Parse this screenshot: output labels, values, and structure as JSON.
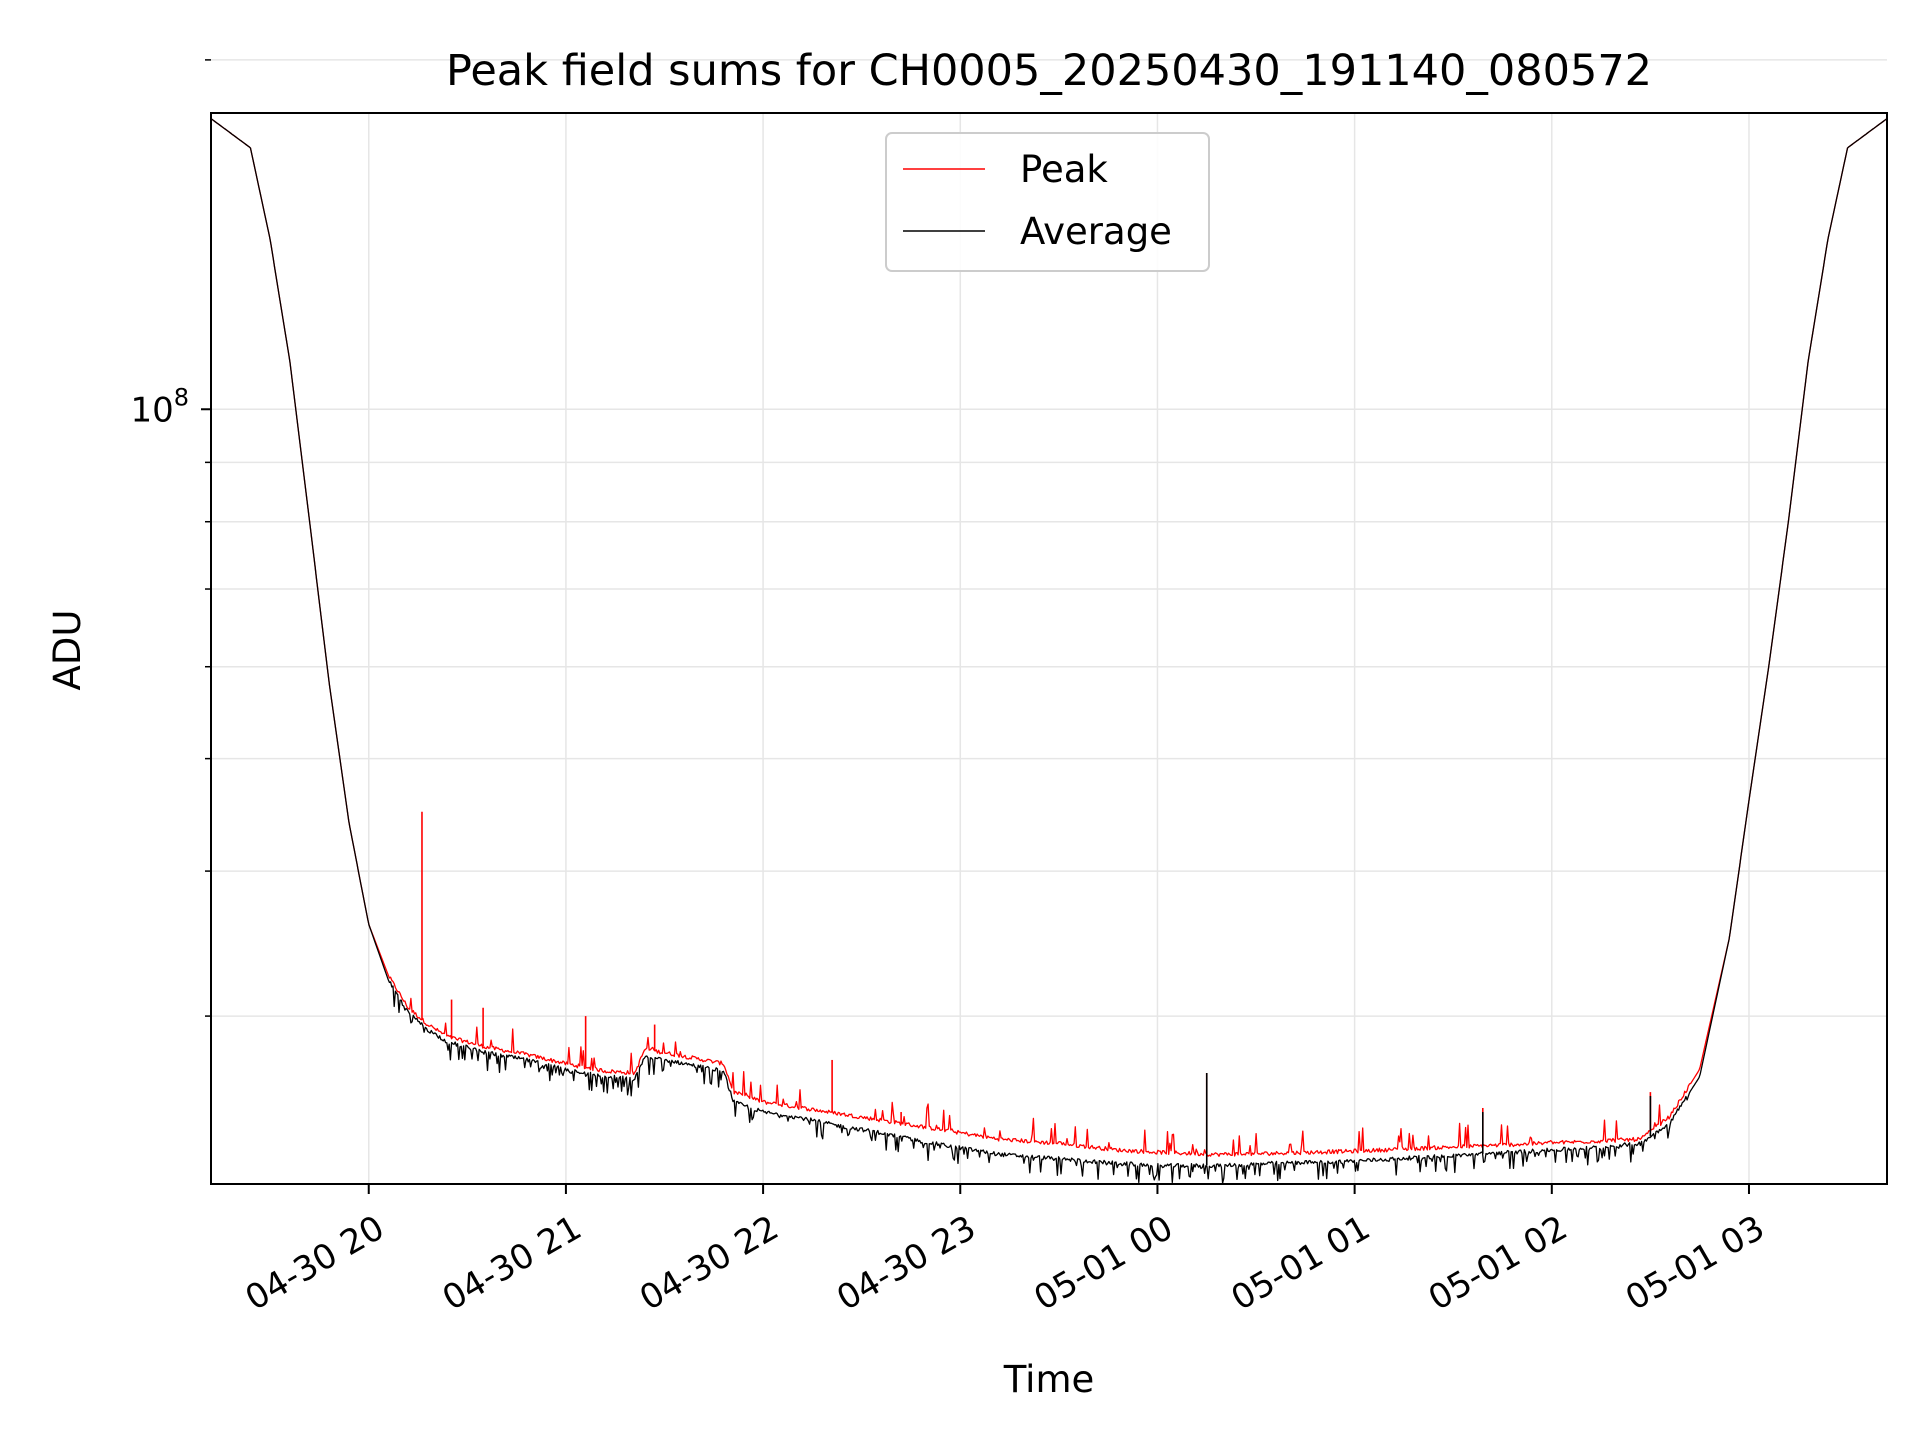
{
  "chart_data": {
    "type": "line",
    "title": "Peak field sums for CH0005_20250430_191140_080572",
    "xlabel": "Time",
    "ylabel": "ADU",
    "yscale": "log",
    "ylim": [
      21500000,
      180000000
    ],
    "xlim_hours": [
      19.2,
      27.7
    ],
    "grid": true,
    "legend_position": "top-center",
    "x_ticks": [
      {
        "hour": 20,
        "label": "04-30 20"
      },
      {
        "hour": 21,
        "label": "04-30 21"
      },
      {
        "hour": 22,
        "label": "04-30 22"
      },
      {
        "hour": 23,
        "label": "04-30 23"
      },
      {
        "hour": 24,
        "label": "05-01 00"
      },
      {
        "hour": 25,
        "label": "05-01 01"
      },
      {
        "hour": 26,
        "label": "05-01 02"
      },
      {
        "hour": 27,
        "label": "05-01 03"
      }
    ],
    "y_major_ticks": [
      {
        "value": 100000000,
        "base": "10",
        "exp": "8"
      }
    ],
    "y_minor_ticks": [
      30000000,
      40000000,
      50000000,
      60000000,
      70000000,
      80000000,
      90000000,
      200000000
    ],
    "series": [
      {
        "name": "Peak",
        "color": "#ff0000",
        "points": [
          [
            19.2,
            178000000
          ],
          [
            19.4,
            168000000
          ],
          [
            19.5,
            140000000
          ],
          [
            19.6,
            110000000
          ],
          [
            19.7,
            80000000
          ],
          [
            19.8,
            58000000
          ],
          [
            19.9,
            44000000
          ],
          [
            20.0,
            36000000
          ],
          [
            20.1,
            32500000
          ],
          [
            20.2,
            30500000
          ],
          [
            20.3,
            29500000
          ],
          [
            20.4,
            28800000
          ],
          [
            20.6,
            28200000
          ],
          [
            20.8,
            27800000
          ],
          [
            21.0,
            27300000
          ],
          [
            21.2,
            26900000
          ],
          [
            21.35,
            26800000
          ],
          [
            21.4,
            28100000
          ],
          [
            21.6,
            27700000
          ],
          [
            21.8,
            27300000
          ],
          [
            21.85,
            25800000
          ],
          [
            22.0,
            25300000
          ],
          [
            22.2,
            25000000
          ],
          [
            22.4,
            24700000
          ],
          [
            22.6,
            24400000
          ],
          [
            22.8,
            24100000
          ],
          [
            23.0,
            23800000
          ],
          [
            23.2,
            23500000
          ],
          [
            23.5,
            23300000
          ],
          [
            23.8,
            23000000
          ],
          [
            24.0,
            22900000
          ],
          [
            24.3,
            22800000
          ],
          [
            24.6,
            22850000
          ],
          [
            25.0,
            22950000
          ],
          [
            25.4,
            23100000
          ],
          [
            25.8,
            23250000
          ],
          [
            26.2,
            23400000
          ],
          [
            26.45,
            23500000
          ],
          [
            26.6,
            24600000
          ],
          [
            26.75,
            27000000
          ],
          [
            26.9,
            35000000
          ],
          [
            27.0,
            46000000
          ],
          [
            27.1,
            60000000
          ],
          [
            27.2,
            80000000
          ],
          [
            27.3,
            110000000
          ],
          [
            27.4,
            140000000
          ],
          [
            27.5,
            168000000
          ],
          [
            27.7,
            178000000
          ]
        ],
        "spikes": [
          {
            "hour": 20.27,
            "value": 45000000
          },
          {
            "hour": 20.42,
            "value": 31000000
          },
          {
            "hour": 20.58,
            "value": 30500000
          },
          {
            "hour": 21.1,
            "value": 30000000
          },
          {
            "hour": 21.45,
            "value": 29500000
          },
          {
            "hour": 22.35,
            "value": 27500000
          },
          {
            "hour": 22.7,
            "value": 24800000
          },
          {
            "hour": 24.25,
            "value": 26800000
          },
          {
            "hour": 25.65,
            "value": 25000000
          },
          {
            "hour": 26.5,
            "value": 25800000
          }
        ]
      },
      {
        "name": "Average",
        "color": "#000000",
        "points": [
          [
            19.2,
            178000000
          ],
          [
            19.4,
            168000000
          ],
          [
            19.5,
            140000000
          ],
          [
            19.6,
            110000000
          ],
          [
            19.7,
            80000000
          ],
          [
            19.8,
            58000000
          ],
          [
            19.9,
            44000000
          ],
          [
            20.0,
            36000000
          ],
          [
            20.1,
            32200000
          ],
          [
            20.2,
            30200000
          ],
          [
            20.3,
            29200000
          ],
          [
            20.4,
            28500000
          ],
          [
            20.6,
            27900000
          ],
          [
            20.8,
            27500000
          ],
          [
            21.0,
            27000000
          ],
          [
            21.2,
            26600000
          ],
          [
            21.35,
            26500000
          ],
          [
            21.4,
            27700000
          ],
          [
            21.6,
            27300000
          ],
          [
            21.8,
            26900000
          ],
          [
            21.85,
            25300000
          ],
          [
            22.0,
            24800000
          ],
          [
            22.2,
            24500000
          ],
          [
            22.4,
            24100000
          ],
          [
            22.6,
            23800000
          ],
          [
            22.8,
            23400000
          ],
          [
            23.0,
            23100000
          ],
          [
            23.2,
            22800000
          ],
          [
            23.5,
            22600000
          ],
          [
            23.8,
            22400000
          ],
          [
            24.0,
            22300000
          ],
          [
            24.3,
            22300000
          ],
          [
            24.6,
            22400000
          ],
          [
            25.0,
            22500000
          ],
          [
            25.4,
            22700000
          ],
          [
            25.8,
            22900000
          ],
          [
            26.2,
            23100000
          ],
          [
            26.45,
            23300000
          ],
          [
            26.6,
            24300000
          ],
          [
            26.75,
            26600000
          ],
          [
            26.9,
            35000000
          ],
          [
            27.0,
            46000000
          ],
          [
            27.1,
            60000000
          ],
          [
            27.2,
            80000000
          ],
          [
            27.3,
            110000000
          ],
          [
            27.4,
            140000000
          ],
          [
            27.5,
            168000000
          ],
          [
            27.7,
            178000000
          ]
        ],
        "spikes": [
          {
            "hour": 24.25,
            "value": 26800000
          },
          {
            "hour": 25.65,
            "value": 24800000
          },
          {
            "hour": 26.5,
            "value": 25600000
          }
        ]
      }
    ]
  }
}
